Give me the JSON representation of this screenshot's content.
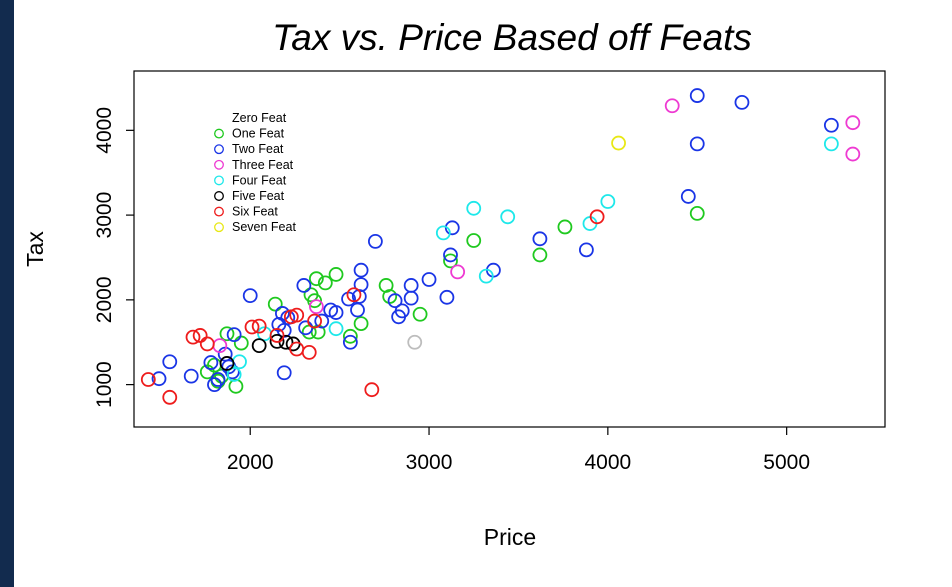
{
  "chart_data": {
    "type": "scatter",
    "title": "Tax vs. Price Based off Feats",
    "xlabel": "Price",
    "ylabel": "Tax",
    "xlim": [
      1350,
      5550
    ],
    "ylim": [
      500,
      4700
    ],
    "xticks": [
      2000,
      3000,
      4000,
      5000
    ],
    "yticks": [
      1000,
      2000,
      3000,
      4000
    ],
    "grid": false,
    "legend_position": "top-left",
    "series": [
      {
        "name": "Zero Feat",
        "color": "#000000",
        "marker": "none",
        "points": []
      },
      {
        "name": "One Feat",
        "color": "#1fc91f",
        "points": [
          [
            1760,
            1150
          ],
          [
            1800,
            1230
          ],
          [
            1820,
            1040
          ],
          [
            1840,
            1100
          ],
          [
            1870,
            1600
          ],
          [
            1920,
            980
          ],
          [
            1950,
            1490
          ],
          [
            2140,
            1950
          ],
          [
            2330,
            1620
          ],
          [
            2340,
            2060
          ],
          [
            2360,
            1990
          ],
          [
            2370,
            2250
          ],
          [
            2380,
            1620
          ],
          [
            2420,
            2200
          ],
          [
            2480,
            2300
          ],
          [
            2560,
            1570
          ],
          [
            2620,
            1720
          ],
          [
            2760,
            2170
          ],
          [
            2780,
            2040
          ],
          [
            2950,
            1830
          ],
          [
            3120,
            2460
          ],
          [
            3250,
            2700
          ],
          [
            3620,
            2530
          ],
          [
            3760,
            2860
          ],
          [
            4500,
            3020
          ]
        ]
      },
      {
        "name": "Two Feat",
        "color": "#1a35e6",
        "points": [
          [
            1490,
            1070
          ],
          [
            1550,
            1270
          ],
          [
            1670,
            1100
          ],
          [
            1780,
            1260
          ],
          [
            1800,
            1000
          ],
          [
            1820,
            1060
          ],
          [
            1860,
            1360
          ],
          [
            1880,
            1210
          ],
          [
            1900,
            1150
          ],
          [
            1910,
            1590
          ],
          [
            2000,
            2050
          ],
          [
            2160,
            1710
          ],
          [
            2180,
            1840
          ],
          [
            2190,
            1640
          ],
          [
            2190,
            1140
          ],
          [
            2210,
            1790
          ],
          [
            2300,
            2170
          ],
          [
            2310,
            1670
          ],
          [
            2400,
            1750
          ],
          [
            2450,
            1880
          ],
          [
            2480,
            1850
          ],
          [
            2550,
            2010
          ],
          [
            2560,
            1500
          ],
          [
            2600,
            1880
          ],
          [
            2610,
            2040
          ],
          [
            2620,
            2180
          ],
          [
            2620,
            2350
          ],
          [
            2700,
            2690
          ],
          [
            2810,
            1990
          ],
          [
            2830,
            1800
          ],
          [
            2850,
            1870
          ],
          [
            2900,
            2170
          ],
          [
            2900,
            2020
          ],
          [
            3000,
            2240
          ],
          [
            3100,
            2030
          ],
          [
            3120,
            2530
          ],
          [
            3130,
            2850
          ],
          [
            3360,
            2350
          ],
          [
            3620,
            2720
          ],
          [
            3880,
            2590
          ],
          [
            4450,
            3220
          ],
          [
            4500,
            3840
          ],
          [
            4500,
            4410
          ],
          [
            4750,
            4330
          ],
          [
            5250,
            4060
          ]
        ]
      },
      {
        "name": "Three Feat",
        "color": "#ee3ad2",
        "points": [
          [
            1830,
            1460
          ],
          [
            2370,
            1920
          ],
          [
            3160,
            2330
          ],
          [
            4360,
            4290
          ],
          [
            5370,
            4090
          ],
          [
            5370,
            3720
          ]
        ]
      },
      {
        "name": "Four Feat",
        "color": "#1ee8ea",
        "points": [
          [
            1910,
            1120
          ],
          [
            1940,
            1270
          ],
          [
            2080,
            1600
          ],
          [
            2480,
            1660
          ],
          [
            3080,
            2790
          ],
          [
            3250,
            3080
          ],
          [
            3320,
            2280
          ],
          [
            3440,
            2980
          ],
          [
            3900,
            2900
          ],
          [
            4000,
            3160
          ],
          [
            5250,
            3840
          ]
        ]
      },
      {
        "name": "Five Feat",
        "color": "#000000",
        "points": [
          [
            1870,
            1250
          ],
          [
            2050,
            1460
          ],
          [
            2150,
            1510
          ],
          [
            2200,
            1500
          ],
          [
            2240,
            1480
          ]
        ]
      },
      {
        "name": "Six Feat",
        "color": "#ee1c1c",
        "points": [
          [
            1430,
            1060
          ],
          [
            1550,
            850
          ],
          [
            1680,
            1560
          ],
          [
            1720,
            1580
          ],
          [
            1760,
            1480
          ],
          [
            2010,
            1680
          ],
          [
            2050,
            1690
          ],
          [
            2150,
            1580
          ],
          [
            2230,
            1800
          ],
          [
            2260,
            1420
          ],
          [
            2260,
            1820
          ],
          [
            2330,
            1380
          ],
          [
            2360,
            1750
          ],
          [
            2580,
            2060
          ],
          [
            2680,
            940
          ],
          [
            3940,
            2980
          ]
        ]
      },
      {
        "name": "Seven Feat",
        "color": "#e8e815",
        "points": [
          [
            4060,
            3850
          ]
        ]
      },
      {
        "name": "",
        "color": "#bdbdbd",
        "points": [
          [
            2920,
            1500
          ]
        ]
      }
    ]
  }
}
